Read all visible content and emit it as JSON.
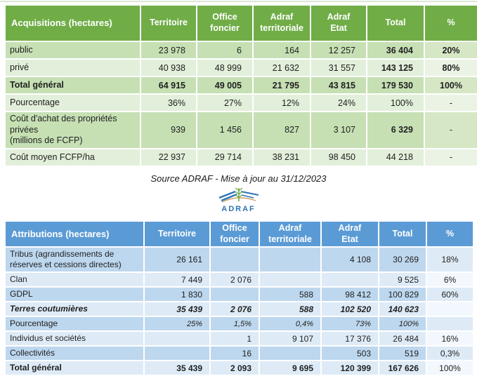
{
  "colors": {
    "acq_header": "#70AD47",
    "acq_row_dark": "#C6E0B4",
    "acq_row_light": "#E2EFDA",
    "acq_pct_dark": "#D6E7C5",
    "acq_pct_light": "#EBF4E4",
    "attr_header": "#5B9BD5",
    "attr_row_dark": "#BDD7EE",
    "attr_row_light": "#DEEBF7",
    "attr_pct_dark": "#DEEBF7",
    "attr_pct_light": "#F2F8FD",
    "header_text": "#FFFFFF",
    "body_text": "#1F1F1F",
    "logo_blue": "#2E75B6",
    "logo_green": "#70AD47",
    "logo_tan": "#C99B63"
  },
  "acquisitions": {
    "title": "Acquisitions (hectares)",
    "columns": [
      "Territoire",
      "Office\nfoncier",
      "Adraf\nterritoriale",
      "Adraf\nEtat",
      "Total",
      "%"
    ],
    "rows": [
      {
        "label": "public",
        "band": "dark",
        "values": [
          "23 978",
          "6",
          "164",
          "12 257",
          "36 404",
          "20%"
        ],
        "bold_cols": [
          4,
          5
        ]
      },
      {
        "label": "privé",
        "band": "light",
        "values": [
          "40 938",
          "48 999",
          "21 632",
          "31 557",
          "143 125",
          "80%"
        ],
        "bold_cols": [
          4,
          5
        ]
      },
      {
        "label": "Total général",
        "band": "dark",
        "style": "total",
        "values": [
          "64 915",
          "49 005",
          "21 795",
          "43 815",
          "179 530",
          "100%"
        ]
      },
      {
        "label": "Pourcentage",
        "band": "light",
        "values": [
          "36%",
          "27%",
          "12%",
          "24%",
          "100%",
          "-"
        ]
      },
      {
        "label": "Coût d'achat des propriétés\nprivées\n(millions de FCFP)",
        "band": "dark",
        "values": [
          "939",
          "1 456",
          "827",
          "3 107",
          "6 329",
          "-"
        ],
        "bold_cols": [
          4
        ]
      },
      {
        "label": "Coût moyen FCFP/ha",
        "band": "light",
        "values": [
          "22 937",
          "29 714",
          "38 231",
          "98 450",
          "44 218",
          "-"
        ]
      }
    ]
  },
  "source_note": {
    "text": "Source ADRAF - Mise à jour au 31/12/2023"
  },
  "logo": {
    "text": "ADRAF"
  },
  "attributions": {
    "title": "Attributions (hectares)",
    "columns": [
      "Territoire",
      "Office\nfoncier",
      "Adraf\nterritoriale",
      "Adraf\nEtat",
      "Total",
      "%"
    ],
    "rows": [
      {
        "label": "Tribus (agrandissements de\nréserves et cessions directes)",
        "band": "dark",
        "values": [
          "26 161",
          "",
          "",
          "4 108",
          "30 269",
          "18%"
        ]
      },
      {
        "label": "Clan",
        "band": "light",
        "values": [
          "7 449",
          "2 076",
          "",
          "",
          "9 525",
          "6%"
        ]
      },
      {
        "label": "GDPL",
        "band": "dark",
        "values": [
          "1 830",
          "",
          "588",
          "98 412",
          "100 829",
          "60%"
        ]
      },
      {
        "label": "Terres coutumières",
        "band": "light",
        "style": "subtotal",
        "values": [
          "35 439",
          "2 076",
          "588",
          "102 520",
          "140 623",
          ""
        ]
      },
      {
        "label": "Pourcentage",
        "band": "dark",
        "style": "pctrow",
        "values": [
          "25%",
          "1,5%",
          "0,4%",
          "73%",
          "100%",
          ""
        ]
      },
      {
        "label": "Individus et sociétés",
        "band": "light",
        "values": [
          "",
          "1",
          "9 107",
          "17 376",
          "26 484",
          "16%"
        ]
      },
      {
        "label": "Collectivités",
        "band": "dark",
        "values": [
          "",
          "16",
          "",
          "503",
          "519",
          "0,3%"
        ]
      },
      {
        "label": "Total général",
        "band": "light",
        "style": "total",
        "regular_cols": [
          5
        ],
        "values": [
          "35 439",
          "2 093",
          "9 695",
          "120 399",
          "167 626",
          "100%"
        ]
      }
    ]
  }
}
